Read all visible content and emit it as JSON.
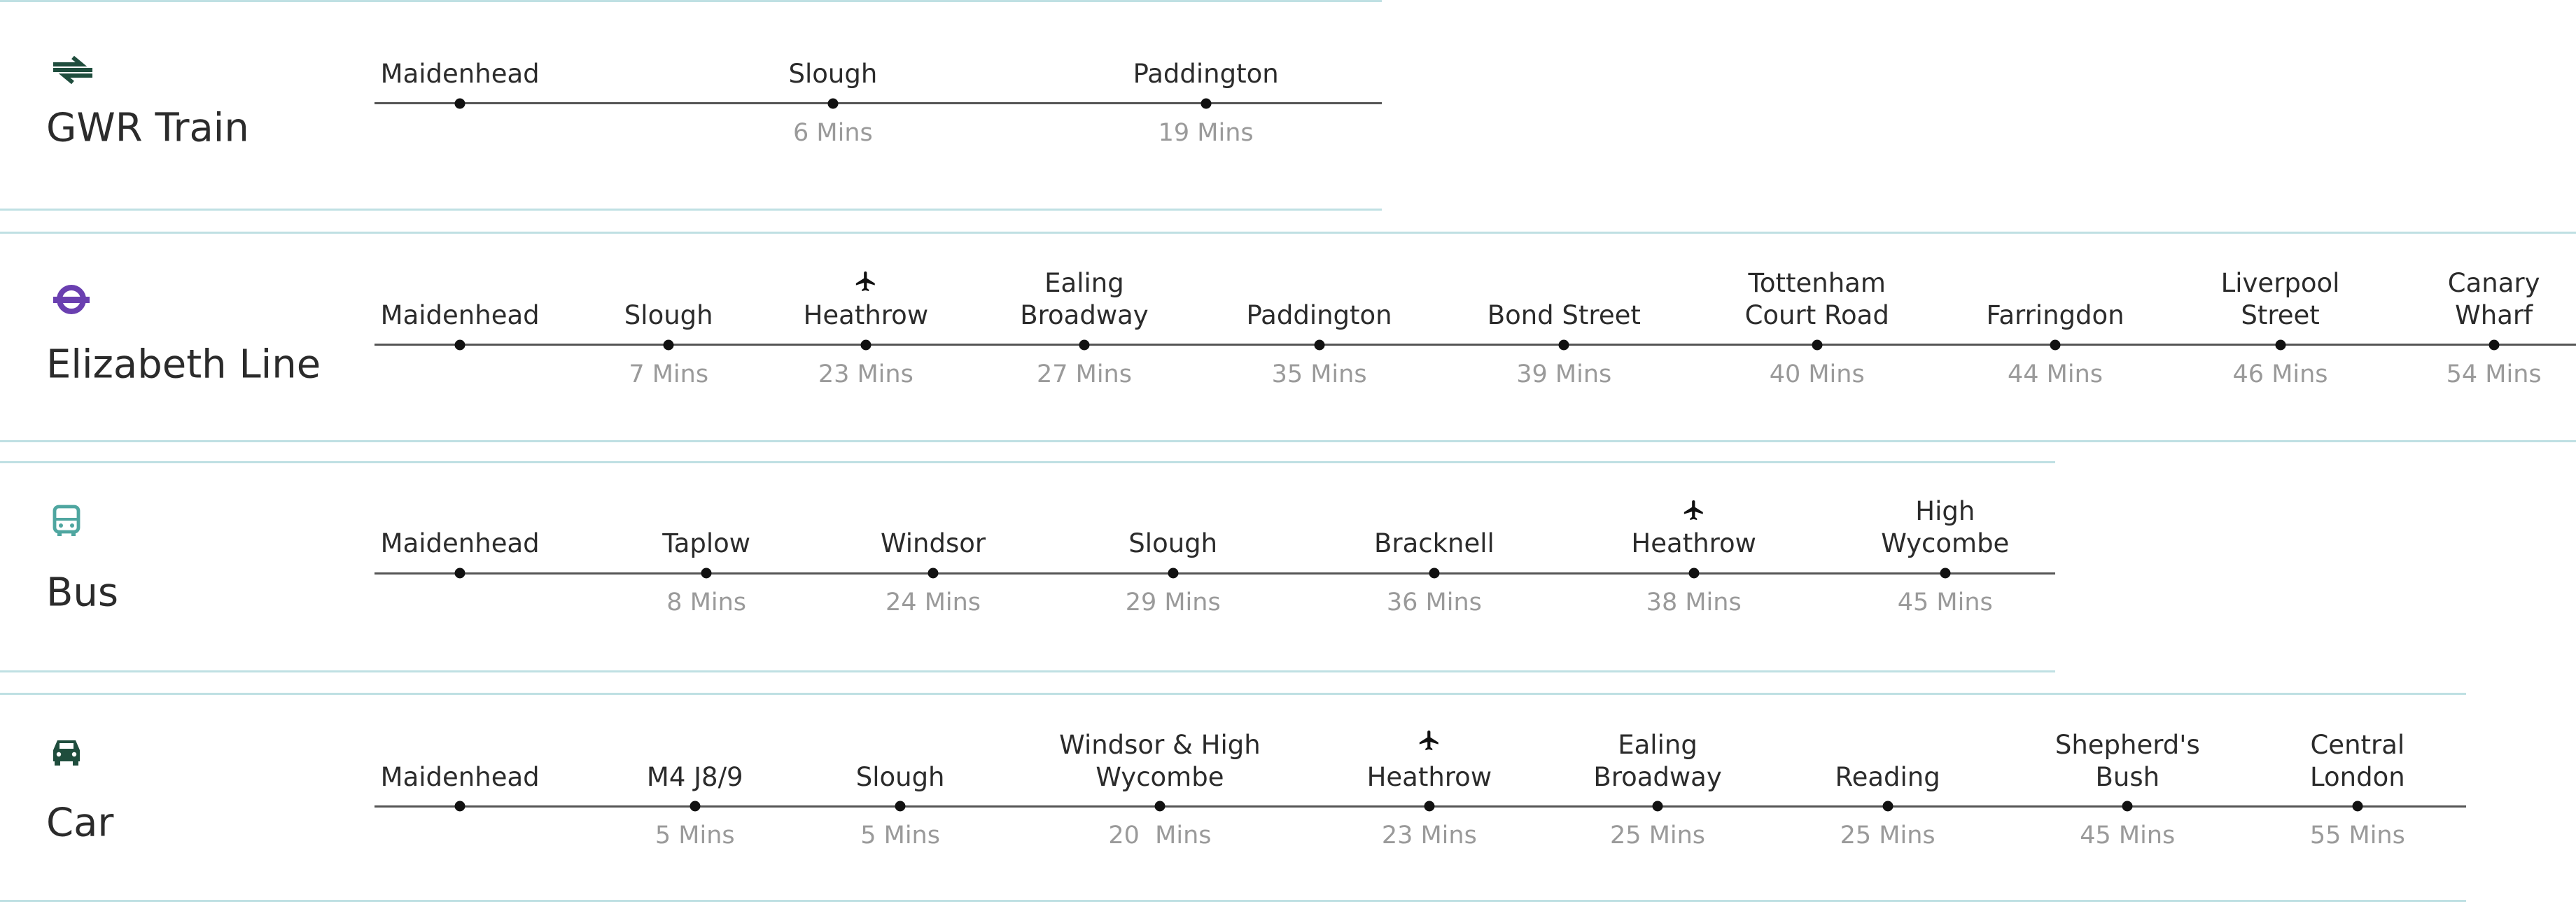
{
  "sections": [
    {
      "title": "GWR Train",
      "stops": [
        {
          "name": "Maidenhead"
        },
        {
          "name": "Slough",
          "time": "6 Mins"
        },
        {
          "name": "Paddington",
          "time": "19 Mins"
        }
      ]
    },
    {
      "title": "Elizabeth Line",
      "stops": [
        {
          "name": "Maidenhead"
        },
        {
          "name": "Slough",
          "time": "7 Mins"
        },
        {
          "name": "Heathrow",
          "time": "23 Mins"
        },
        {
          "name": "Ealing\nBroadway",
          "time": "27 Mins"
        },
        {
          "name": "Paddington",
          "time": "35 Mins"
        },
        {
          "name": "Bond Street",
          "time": "39 Mins"
        },
        {
          "name": "Tottenham\nCourt Road",
          "time": "40 Mins"
        },
        {
          "name": "Farringdon",
          "time": "44 Mins"
        },
        {
          "name": "Liverpool\nStreet",
          "time": "46 Mins"
        },
        {
          "name": "Canary\nWharf",
          "time": "54 Mins"
        }
      ]
    },
    {
      "title": "Bus",
      "stops": [
        {
          "name": "Maidenhead"
        },
        {
          "name": "Taplow",
          "time": "8 Mins"
        },
        {
          "name": "Windsor",
          "time": "24 Mins"
        },
        {
          "name": "Slough",
          "time": "29 Mins"
        },
        {
          "name": "Bracknell",
          "time": "36 Mins"
        },
        {
          "name": "Heathrow",
          "time": "38 Mins"
        },
        {
          "name": "High\nWycombe",
          "time": "45 Mins"
        }
      ]
    },
    {
      "title": "Car",
      "stops": [
        {
          "name": "Maidenhead"
        },
        {
          "name": "M4 J8/9",
          "time": "5 Mins"
        },
        {
          "name": "Slough",
          "time": "5 Mins"
        },
        {
          "name": "Windsor & High\nWycombe",
          "time": "20  Mins"
        },
        {
          "name": "Heathrow",
          "time": "23 Mins"
        },
        {
          "name": "Ealing\nBroadway",
          "time": "25 Mins"
        },
        {
          "name": "Reading",
          "time": "25 Mins"
        },
        {
          "name": "Shepherd's\nBush",
          "time": "45 Mins"
        },
        {
          "name": "Central\nLondon",
          "time": "55 Mins"
        }
      ]
    }
  ]
}
